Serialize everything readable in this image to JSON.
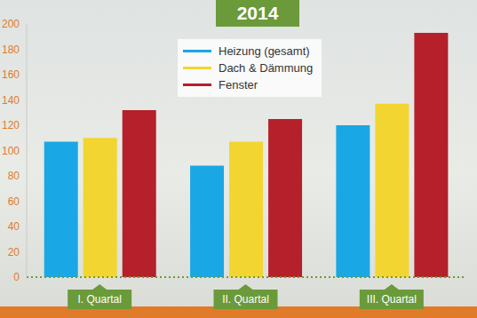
{
  "chart_data": {
    "type": "bar",
    "title": "2014",
    "categories": [
      "I. Quartal",
      "II. Quartal",
      "III. Quartal"
    ],
    "series": [
      {
        "name": "Heizung (gesamt)",
        "color": "#1aa7e6",
        "values": [
          107,
          88,
          120
        ]
      },
      {
        "name": "Dach & Dämmung",
        "color": "#f2d531",
        "values": [
          110,
          107,
          137
        ]
      },
      {
        "name": "Fenster",
        "color": "#b5202a",
        "values": [
          132,
          125,
          193
        ]
      }
    ],
    "ylim": [
      0,
      200
    ],
    "yticks": [
      0,
      20,
      40,
      60,
      80,
      100,
      120,
      140,
      160,
      180,
      200
    ],
    "grid": false
  }
}
